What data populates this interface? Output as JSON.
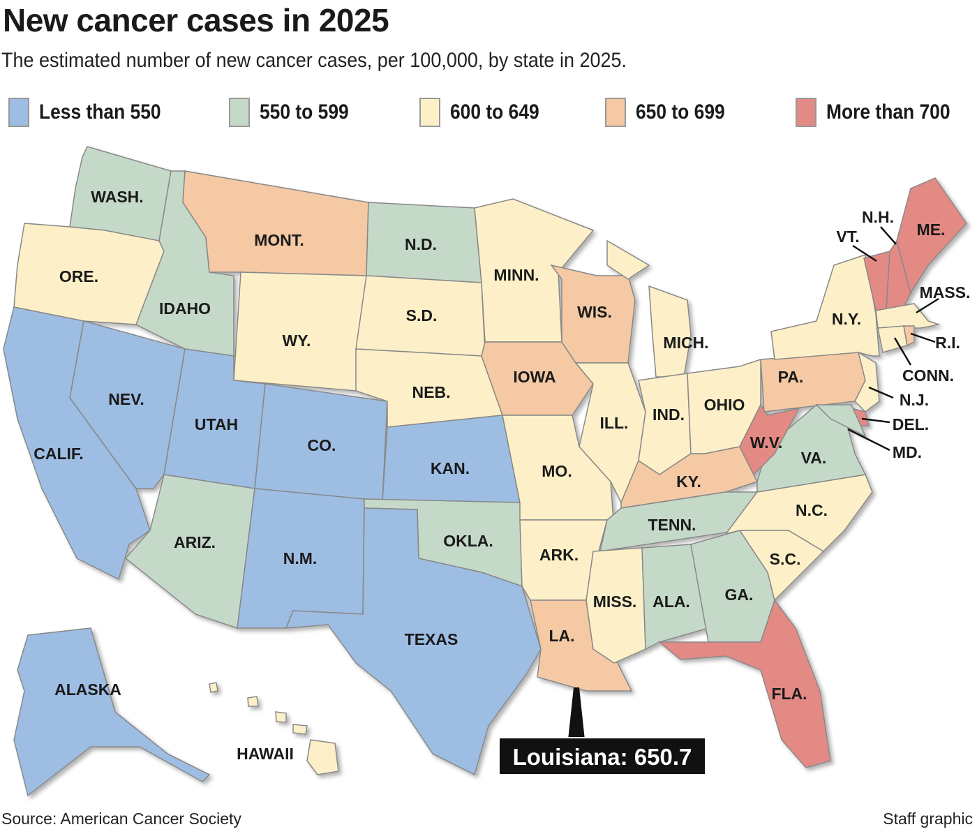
{
  "title": "New cancer cases in 2025",
  "subtitle": "The estimated number of new cancer cases, per 100,000, by state in 2025.",
  "legend": [
    {
      "label": "Less than 550",
      "color": "#9dbde3"
    },
    {
      "label": "550 to 599",
      "color": "#c5d9c9"
    },
    {
      "label": "600 to 649",
      "color": "#fdf0c8"
    },
    {
      "label": "650 to 699",
      "color": "#f4c9a4"
    },
    {
      "label": "More than 700",
      "color": "#e48a84"
    }
  ],
  "states": [
    {
      "id": "WA",
      "label": "WASH.",
      "cat": 1
    },
    {
      "id": "OR",
      "label": "ORE.",
      "cat": 2
    },
    {
      "id": "CA",
      "label": "CALIF.",
      "cat": 0
    },
    {
      "id": "NV",
      "label": "NEV.",
      "cat": 0
    },
    {
      "id": "ID",
      "label": "IDAHO",
      "cat": 1
    },
    {
      "id": "MT",
      "label": "MONT.",
      "cat": 3
    },
    {
      "id": "WY",
      "label": "WY.",
      "cat": 2
    },
    {
      "id": "UT",
      "label": "UTAH",
      "cat": 0
    },
    {
      "id": "CO",
      "label": "CO.",
      "cat": 0
    },
    {
      "id": "AZ",
      "label": "ARIZ.",
      "cat": 1
    },
    {
      "id": "NM",
      "label": "N.M.",
      "cat": 0
    },
    {
      "id": "ND",
      "label": "N.D.",
      "cat": 1
    },
    {
      "id": "SD",
      "label": "S.D.",
      "cat": 2
    },
    {
      "id": "NE",
      "label": "NEB.",
      "cat": 2
    },
    {
      "id": "KS",
      "label": "KAN.",
      "cat": 0
    },
    {
      "id": "OK",
      "label": "OKLA.",
      "cat": 1
    },
    {
      "id": "TX",
      "label": "TEXAS",
      "cat": 0
    },
    {
      "id": "MN",
      "label": "MINN.",
      "cat": 2
    },
    {
      "id": "IA",
      "label": "IOWA",
      "cat": 3
    },
    {
      "id": "MO",
      "label": "MO.",
      "cat": 2
    },
    {
      "id": "AR",
      "label": "ARK.",
      "cat": 2
    },
    {
      "id": "LA",
      "label": "LA.",
      "cat": 3
    },
    {
      "id": "WI",
      "label": "WIS.",
      "cat": 3
    },
    {
      "id": "IL",
      "label": "ILL.",
      "cat": 2
    },
    {
      "id": "MI",
      "label": "MICH.",
      "cat": 2
    },
    {
      "id": "IN",
      "label": "IND.",
      "cat": 2
    },
    {
      "id": "OH",
      "label": "OHIO",
      "cat": 2
    },
    {
      "id": "KY",
      "label": "KY.",
      "cat": 3
    },
    {
      "id": "TN",
      "label": "TENN.",
      "cat": 1
    },
    {
      "id": "MS",
      "label": "MISS.",
      "cat": 2
    },
    {
      "id": "AL",
      "label": "ALA.",
      "cat": 1
    },
    {
      "id": "GA",
      "label": "GA.",
      "cat": 1
    },
    {
      "id": "FL",
      "label": "FLA.",
      "cat": 4
    },
    {
      "id": "SC",
      "label": "S.C.",
      "cat": 2
    },
    {
      "id": "NC",
      "label": "N.C.",
      "cat": 2
    },
    {
      "id": "VA",
      "label": "VA.",
      "cat": 1
    },
    {
      "id": "WV",
      "label": "W.V.",
      "cat": 4
    },
    {
      "id": "PA",
      "label": "PA.",
      "cat": 3
    },
    {
      "id": "NY",
      "label": "N.Y.",
      "cat": 2
    },
    {
      "id": "NJ",
      "label": "N.J.",
      "cat": 2
    },
    {
      "id": "DE",
      "label": "DEL.",
      "cat": 4
    },
    {
      "id": "MD",
      "label": "MD.",
      "cat": 1
    },
    {
      "id": "VT",
      "label": "VT.",
      "cat": 4
    },
    {
      "id": "NH",
      "label": "N.H.",
      "cat": 4
    },
    {
      "id": "ME",
      "label": "ME.",
      "cat": 4
    },
    {
      "id": "MA",
      "label": "MASS.",
      "cat": 2
    },
    {
      "id": "CT",
      "label": "CONN.",
      "cat": 2
    },
    {
      "id": "RI",
      "label": "R.I.",
      "cat": 3
    },
    {
      "id": "AK",
      "label": "ALASKA",
      "cat": 0
    },
    {
      "id": "HI",
      "label": "HAWAII",
      "cat": 2
    }
  ],
  "callout": {
    "text": "Louisiana: 650.7"
  },
  "source": "Source: American Cancer Society",
  "credit": "Staff graphic"
}
